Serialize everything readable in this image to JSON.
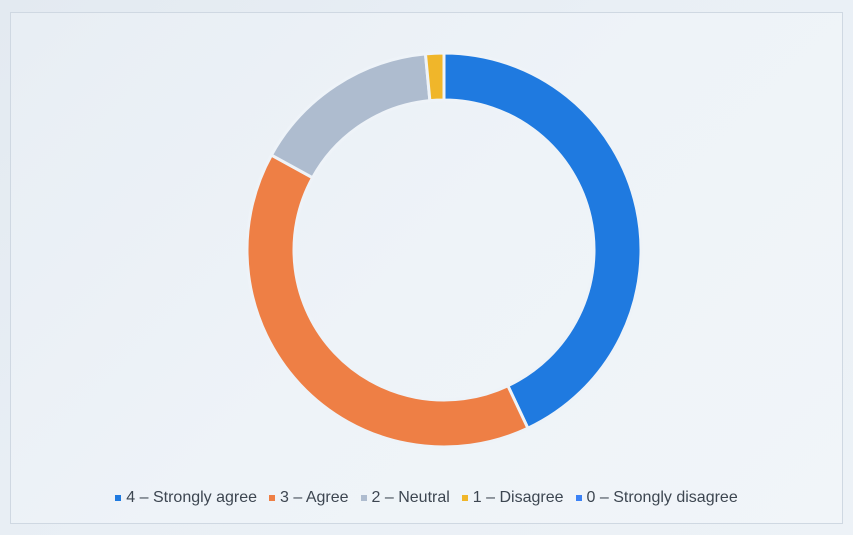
{
  "chart_data": {
    "type": "pie",
    "style": "donut",
    "categories": [
      "4 – Strongly agree",
      "3 – Agree",
      "2 – Neutral",
      "1 – Disagree",
      "0 – Strongly disagree"
    ],
    "values": [
      43,
      40,
      15.5,
      1.5,
      0
    ],
    "colors": [
      "#1f7ae0",
      "#ee7f45",
      "#aebccf",
      "#f0b62a",
      "#3b82f6"
    ],
    "legend_position": "bottom",
    "title": ""
  }
}
